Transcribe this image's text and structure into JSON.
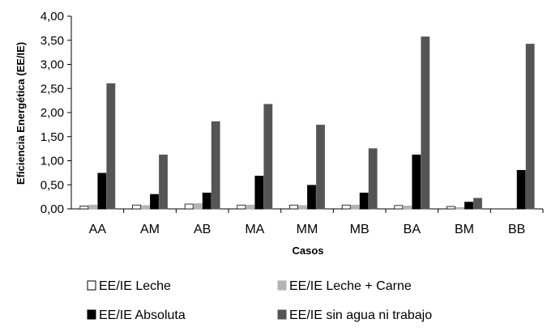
{
  "chart_data": {
    "type": "bar",
    "title": "",
    "xlabel": "Casos",
    "ylabel": "Eficiencia Energética (EE/IE)",
    "categories": [
      "AA",
      "AM",
      "AB",
      "MA",
      "MM",
      "MB",
      "BA",
      "BM",
      "BB"
    ],
    "ylim": [
      0,
      4
    ],
    "yticks": [
      "0,00",
      "0,50",
      "1,00",
      "1,50",
      "2,00",
      "2,50",
      "3,00",
      "3,50",
      "4,00"
    ],
    "grid": false,
    "legend_position": "bottom",
    "series": [
      {
        "name": "EE/IE Leche",
        "color": "#ffffff",
        "stroke": "#000000",
        "values": [
          0.06,
          0.08,
          0.1,
          0.08,
          0.08,
          0.08,
          0.07,
          0.05,
          0
        ]
      },
      {
        "name": "EE/IE Leche + Carne",
        "color": "#b3b3b3",
        "stroke": "#b3b3b3",
        "values": [
          0.08,
          0.07,
          0.11,
          0.08,
          0.07,
          0.08,
          0.06,
          0.03,
          0
        ]
      },
      {
        "name": "EE/IE Absoluta",
        "color": "#000000",
        "stroke": "#000000",
        "values": [
          0.74,
          0.3,
          0.33,
          0.68,
          0.49,
          0.33,
          1.12,
          0.14,
          0.8
        ]
      },
      {
        "name": "EE/IE sin agua ni trabajo",
        "color": "#555555",
        "stroke": "#555555",
        "values": [
          2.6,
          1.12,
          1.81,
          2.17,
          1.74,
          1.25,
          3.57,
          0.22,
          3.42
        ]
      }
    ]
  }
}
